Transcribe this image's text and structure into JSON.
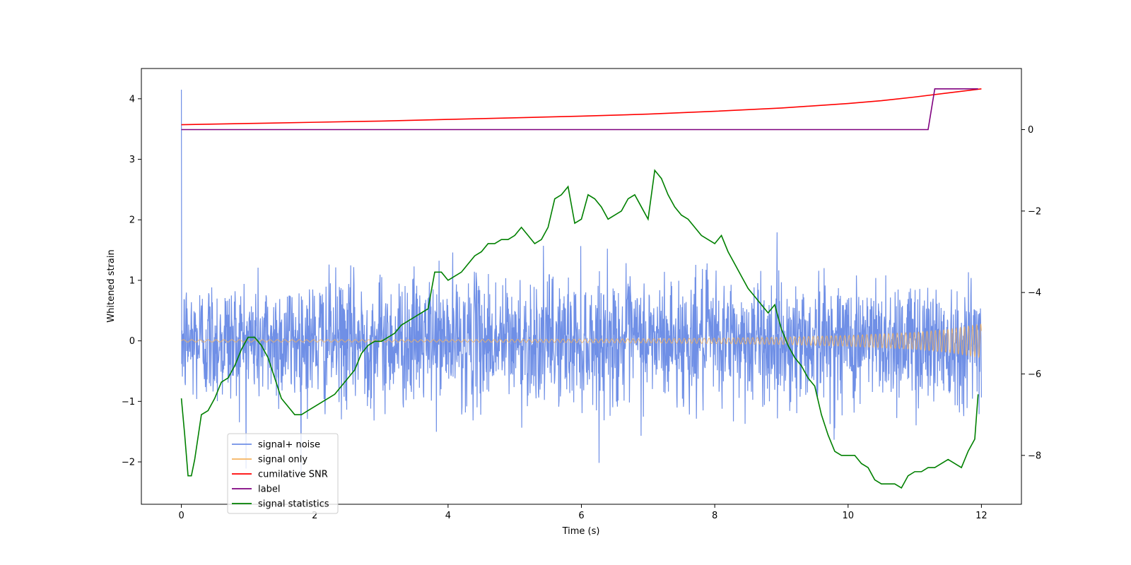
{
  "chart_data": {
    "type": "line",
    "xlabel": "Time (s)",
    "ylabel": "Whitened strain",
    "ylabel_right": "",
    "xlim": [
      -0.6,
      12.6
    ],
    "ylim_left": [
      -2.7,
      4.5
    ],
    "ylim_right": [
      -9.2,
      1.5
    ],
    "x_ticks": [
      0,
      2,
      4,
      6,
      8,
      10,
      12
    ],
    "y_ticks_left": [
      -2,
      -1,
      0,
      1,
      2,
      3,
      4
    ],
    "y_ticks_right": [
      -8,
      -6,
      -4,
      -2,
      0
    ],
    "grid": false,
    "legend_position": "lower-left",
    "colors": {
      "signal_noise": "#6f8fe6",
      "signal_only": "#f5b35f",
      "cumulative_snr": "#ff0000",
      "label": "#7f007f",
      "signal_statistics": "#008000"
    },
    "series": [
      {
        "name": "signal+ noise",
        "axis": "left",
        "description_values": {
          "x_start": 0,
          "x_end": 12,
          "mean": 0.0,
          "std": 0.55,
          "min": -2.35,
          "max": 4.15
        }
      },
      {
        "name": "signal only",
        "axis": "left",
        "x": [
          0,
          1,
          2,
          3,
          4,
          5,
          6,
          7,
          8,
          9,
          10,
          11,
          11.5,
          12
        ],
        "amplitude": [
          0.02,
          0.02,
          0.02,
          0.02,
          0.02,
          0.025,
          0.03,
          0.035,
          0.045,
          0.06,
          0.09,
          0.14,
          0.19,
          0.28
        ]
      },
      {
        "name": "cumilative SNR",
        "axis": "right",
        "x": [
          0,
          1,
          2,
          3,
          4,
          5,
          6,
          7,
          8,
          9,
          10,
          10.5,
          11,
          11.5,
          12
        ],
        "values": [
          0.12,
          0.15,
          0.18,
          0.21,
          0.25,
          0.29,
          0.33,
          0.38,
          0.45,
          0.53,
          0.64,
          0.71,
          0.8,
          0.9,
          1.0
        ]
      },
      {
        "name": "label",
        "axis": "right",
        "x": [
          0,
          11.2,
          11.3,
          11.95
        ],
        "values": [
          0,
          0,
          1,
          1
        ]
      },
      {
        "name": "signal statistics",
        "axis": "right",
        "x": [
          0,
          0.05,
          0.1,
          0.15,
          0.2,
          0.3,
          0.4,
          0.5,
          0.6,
          0.7,
          0.8,
          0.9,
          1.0,
          1.1,
          1.2,
          1.3,
          1.4,
          1.5,
          1.6,
          1.7,
          1.8,
          1.9,
          2.0,
          2.1,
          2.2,
          2.3,
          2.4,
          2.5,
          2.6,
          2.7,
          2.8,
          2.9,
          3.0,
          3.1,
          3.2,
          3.3,
          3.4,
          3.5,
          3.6,
          3.7,
          3.8,
          3.9,
          4.0,
          4.1,
          4.2,
          4.3,
          4.4,
          4.5,
          4.6,
          4.7,
          4.8,
          4.9,
          5.0,
          5.1,
          5.2,
          5.3,
          5.4,
          5.5,
          5.6,
          5.7,
          5.8,
          5.9,
          6.0,
          6.1,
          6.2,
          6.3,
          6.4,
          6.5,
          6.6,
          6.7,
          6.8,
          6.9,
          7.0,
          7.1,
          7.2,
          7.3,
          7.4,
          7.5,
          7.6,
          7.7,
          7.8,
          7.9,
          8.0,
          8.1,
          8.2,
          8.3,
          8.4,
          8.5,
          8.6,
          8.7,
          8.8,
          8.9,
          9.0,
          9.1,
          9.2,
          9.3,
          9.4,
          9.5,
          9.6,
          9.7,
          9.8,
          9.9,
          10.0,
          10.1,
          10.2,
          10.3,
          10.4,
          10.5,
          10.6,
          10.7,
          10.8,
          10.9,
          11.0,
          11.1,
          11.2,
          11.3,
          11.4,
          11.5,
          11.6,
          11.7,
          11.8,
          11.9,
          11.95
        ],
        "values": [
          -6.6,
          -7.5,
          -8.5,
          -8.5,
          -8.1,
          -7.0,
          -6.9,
          -6.6,
          -6.2,
          -6.1,
          -5.8,
          -5.4,
          -5.1,
          -5.1,
          -5.3,
          -5.6,
          -6.1,
          -6.6,
          -6.8,
          -7.0,
          -7.0,
          -6.9,
          -6.8,
          -6.7,
          -6.6,
          -6.5,
          -6.3,
          -6.1,
          -5.9,
          -5.5,
          -5.3,
          -5.2,
          -5.2,
          -5.1,
          -5.0,
          -4.8,
          -4.7,
          -4.6,
          -4.5,
          -4.4,
          -3.5,
          -3.5,
          -3.7,
          -3.6,
          -3.5,
          -3.3,
          -3.1,
          -3.0,
          -2.8,
          -2.8,
          -2.7,
          -2.7,
          -2.6,
          -2.4,
          -2.6,
          -2.8,
          -2.7,
          -2.4,
          -1.7,
          -1.6,
          -1.4,
          -2.3,
          -2.2,
          -1.6,
          -1.7,
          -1.9,
          -2.2,
          -2.1,
          -2.0,
          -1.7,
          -1.6,
          -1.9,
          -2.2,
          -1.0,
          -1.2,
          -1.6,
          -1.9,
          -2.1,
          -2.2,
          -2.4,
          -2.6,
          -2.7,
          -2.8,
          -2.6,
          -3.0,
          -3.3,
          -3.6,
          -3.9,
          -4.1,
          -4.3,
          -4.5,
          -4.3,
          -4.9,
          -5.3,
          -5.6,
          -5.8,
          -6.1,
          -6.3,
          -7.0,
          -7.5,
          -7.9,
          -8.0,
          -8.0,
          -8.0,
          -8.2,
          -8.3,
          -8.6,
          -8.7,
          -8.7,
          -8.7,
          -8.8,
          -8.5,
          -8.4,
          -8.4,
          -8.3,
          -8.3,
          -8.2,
          -8.1,
          -8.2,
          -8.3,
          -7.9,
          -7.6,
          -6.5
        ]
      }
    ]
  }
}
